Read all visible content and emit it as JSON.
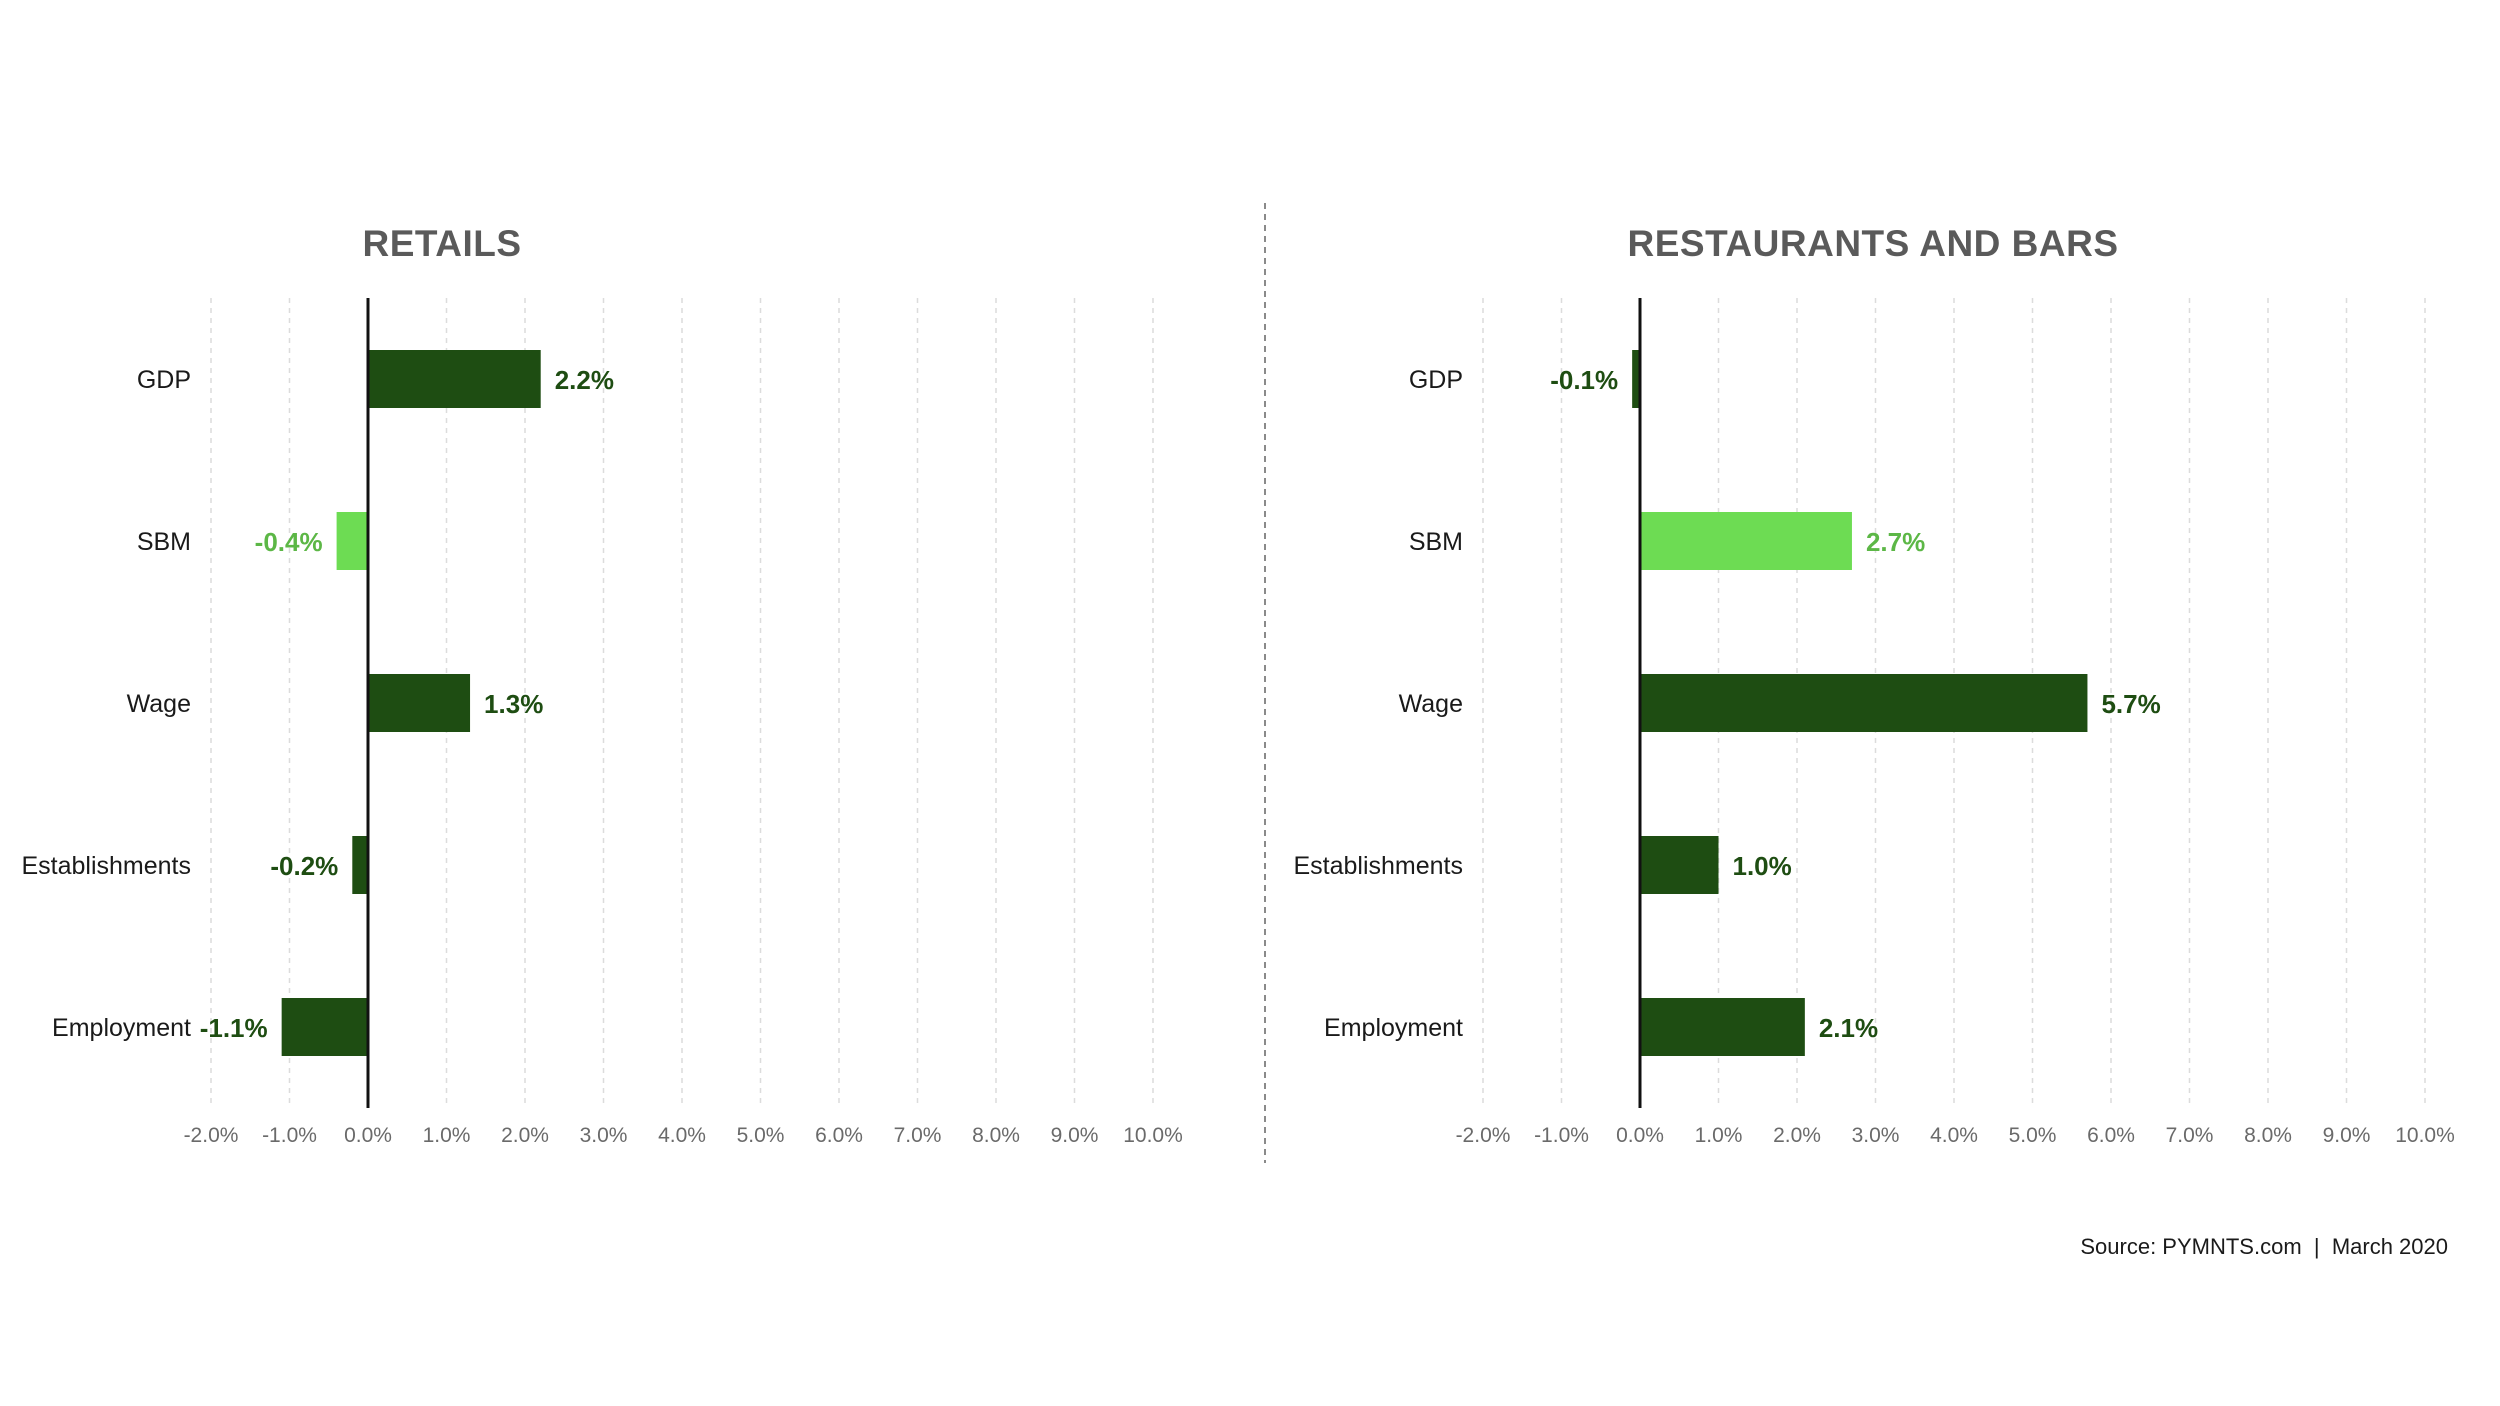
{
  "colors": {
    "dark_green": "#1e4d12",
    "light_green": "#6ddc53",
    "light_green_text": "#5cb746",
    "axis": "#111111",
    "grid": "#dcdcdc",
    "divider": "#8a8a8a"
  },
  "chart_data": [
    {
      "type": "bar",
      "orientation": "horizontal",
      "title": "RETAILS",
      "categories": [
        "GDP",
        "SBM",
        "Wage",
        "Establishments",
        "Employment"
      ],
      "values": [
        2.2,
        -0.4,
        1.3,
        -0.2,
        -1.1
      ],
      "value_labels": [
        "2.2%",
        "-0.4%",
        "1.3%",
        "-0.2%",
        "-1.1%"
      ],
      "highlight": [
        "SBM"
      ],
      "xlim": [
        -2.0,
        10.0
      ],
      "xticks": [
        "-2.0%",
        "-1.0%",
        "0.0%",
        "1.0%",
        "2.0%",
        "3.0%",
        "4.0%",
        "5.0%",
        "6.0%",
        "7.0%",
        "8.0%",
        "9.0%",
        "10.0%"
      ],
      "grid": true
    },
    {
      "type": "bar",
      "orientation": "horizontal",
      "title": "RESTAURANTS AND BARS",
      "categories": [
        "GDP",
        "SBM",
        "Wage",
        "Establishments",
        "Employment"
      ],
      "values": [
        -0.1,
        2.7,
        5.7,
        1.0,
        2.1
      ],
      "value_labels": [
        "-0.1%",
        "2.7%",
        "5.7%",
        "1.0%",
        "2.1%"
      ],
      "highlight": [
        "SBM"
      ],
      "xlim": [
        -2.0,
        10.0
      ],
      "xticks": [
        "-2.0%",
        "-1.0%",
        "0.0%",
        "1.0%",
        "2.0%",
        "3.0%",
        "4.0%",
        "5.0%",
        "6.0%",
        "7.0%",
        "8.0%",
        "9.0%",
        "10.0%"
      ],
      "grid": true
    }
  ],
  "footer": {
    "source": "Source: PYMNTS.com  |  March 2020"
  }
}
